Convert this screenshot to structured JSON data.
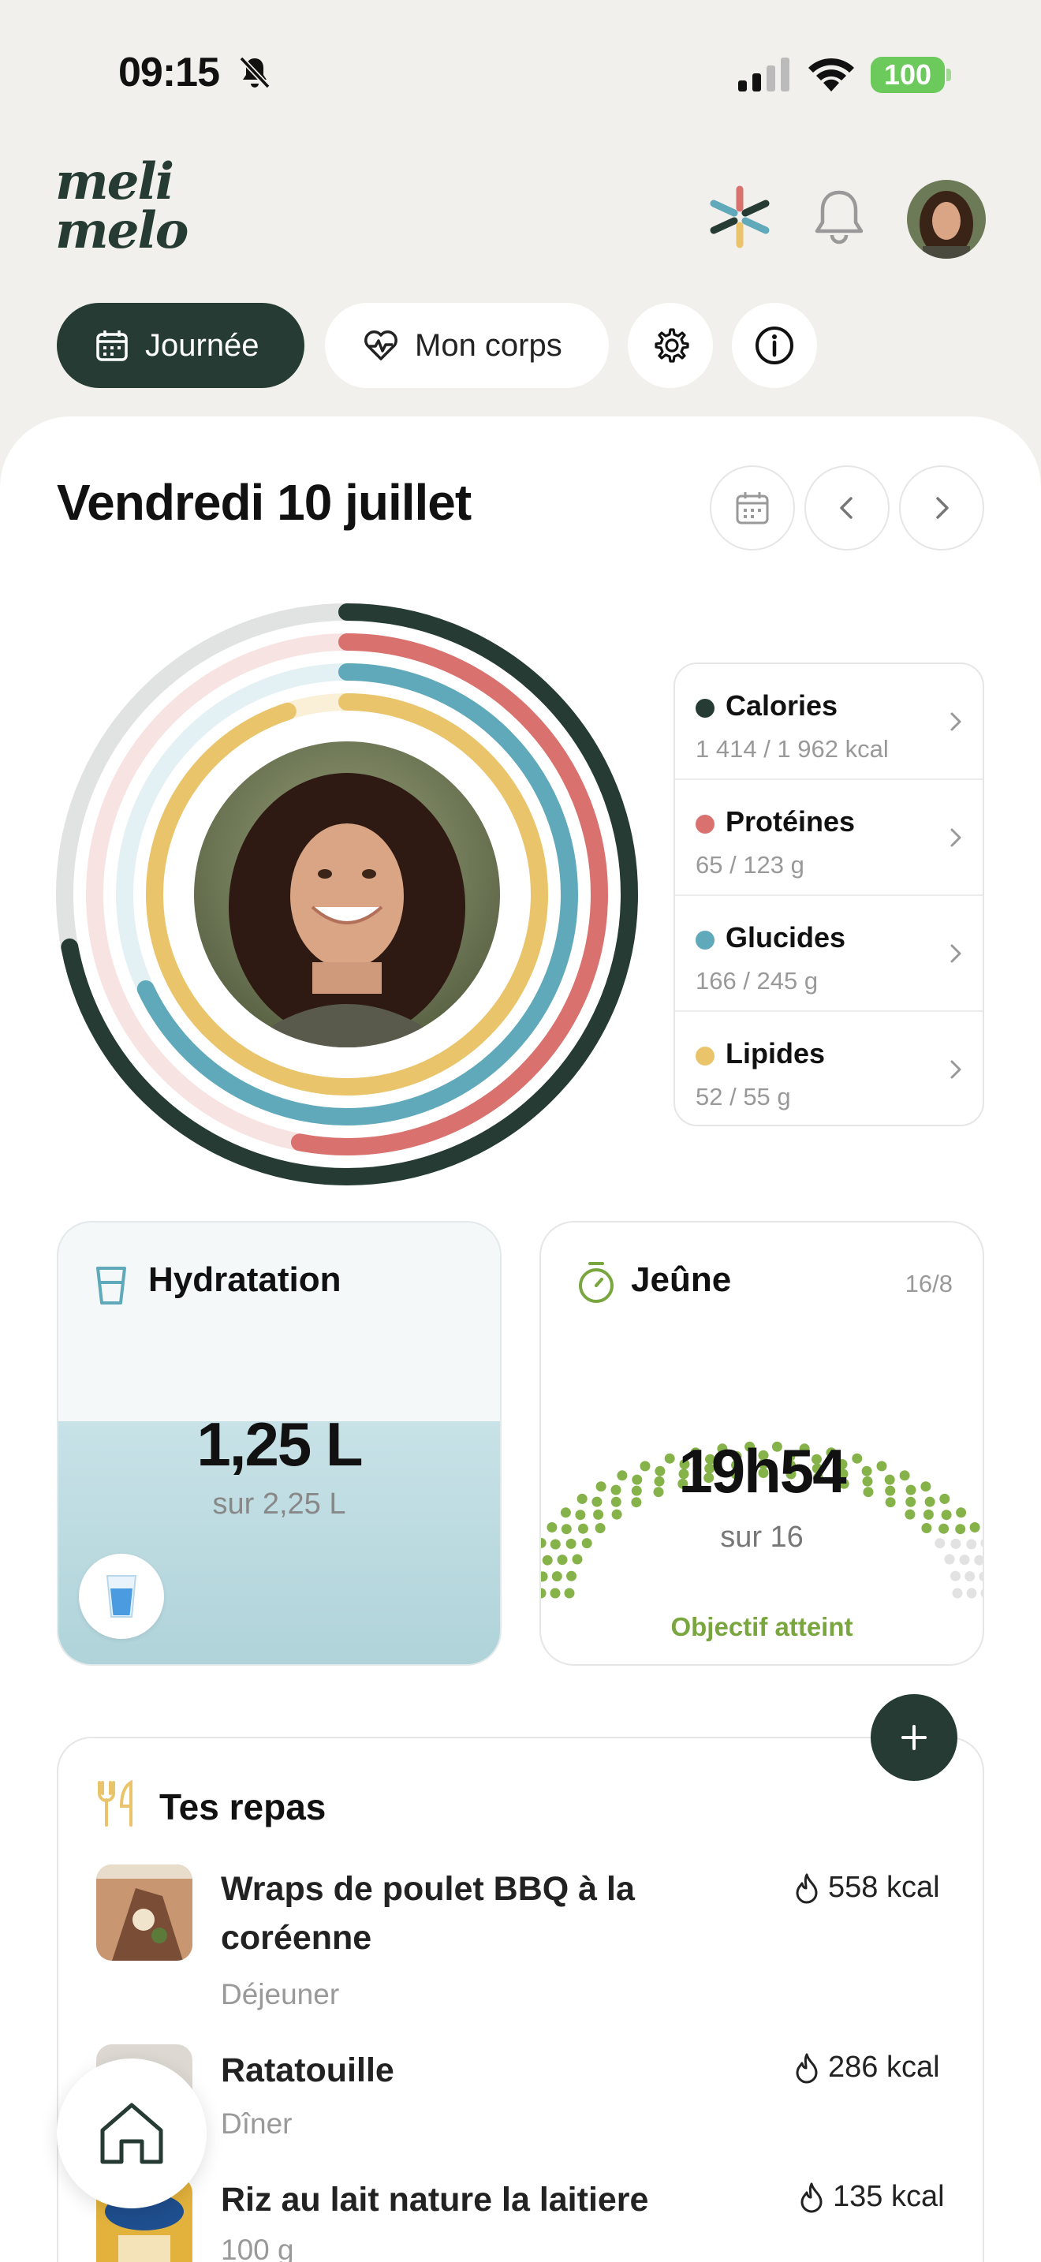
{
  "status": {
    "time": "09:15",
    "battery": "100"
  },
  "header": {
    "logo": "meli melo"
  },
  "tabs": {
    "journee": "Journée",
    "corps": "Mon corps"
  },
  "day": {
    "title": "Vendredi 10 juillet"
  },
  "macros": [
    {
      "name": "Calories",
      "value": "1 414 / 1 962 kcal",
      "color": "#253b33",
      "progress": 0.72
    },
    {
      "name": "Protéines",
      "value": "65 / 123 g",
      "color": "#d9726e",
      "progress": 0.53
    },
    {
      "name": "Glucides",
      "value": "166 / 245 g",
      "color": "#5fa9ba",
      "progress": 0.68
    },
    {
      "name": "Lipides",
      "value": "52 / 55 g",
      "color": "#e9c46a",
      "progress": 0.95
    }
  ],
  "hydration": {
    "title": "Hydratation",
    "value": "1,25 L",
    "goal": "sur 2,25 L"
  },
  "fasting": {
    "title": "Jeûne",
    "ratio": "16/8",
    "value": "19h54",
    "goal": "sur 16",
    "status": "Objectif atteint"
  },
  "meals": {
    "title": "Tes repas",
    "items": [
      {
        "name": "Wraps de poulet BBQ à la coréenne",
        "sub": "Déjeuner",
        "kcal": "558 kcal"
      },
      {
        "name": "Ratatouille",
        "sub": "Dîner",
        "kcal": "286 kcal"
      },
      {
        "name": "Riz au lait nature la laitiere",
        "sub": "100 g",
        "kcal": "135 kcal"
      }
    ]
  }
}
